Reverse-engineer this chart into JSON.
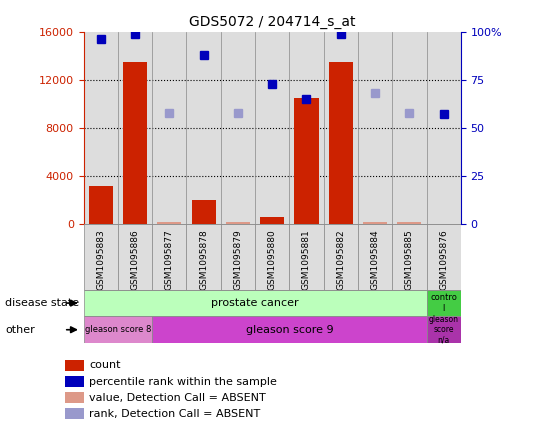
{
  "title": "GDS5072 / 204714_s_at",
  "samples": [
    "GSM1095883",
    "GSM1095886",
    "GSM1095877",
    "GSM1095878",
    "GSM1095879",
    "GSM1095880",
    "GSM1095881",
    "GSM1095882",
    "GSM1095884",
    "GSM1095885",
    "GSM1095876"
  ],
  "counts": [
    3200,
    13500,
    200,
    2000,
    200,
    600,
    10500,
    13500,
    200,
    200,
    50
  ],
  "percentile_ranks": [
    96,
    99,
    58,
    88,
    58,
    73,
    65,
    99,
    68,
    58,
    57
  ],
  "absent_mask": [
    false,
    false,
    true,
    false,
    true,
    false,
    false,
    false,
    true,
    true,
    false
  ],
  "bar_color_present": "#cc2200",
  "bar_color_absent": "#dd9988",
  "dot_color_present": "#0000bb",
  "dot_color_absent": "#9999cc",
  "disease_color_prostate": "#bbffbb",
  "disease_color_control": "#44cc44",
  "gleason_color_8": "#dd88cc",
  "gleason_color_9": "#cc44cc",
  "gleason_color_na": "#aa33aa",
  "ylim_left": [
    0,
    16000
  ],
  "ylim_right": [
    0,
    100
  ],
  "yticks_left": [
    0,
    4000,
    8000,
    12000,
    16000
  ],
  "yticks_right": [
    0,
    25,
    50,
    75,
    100
  ],
  "background_color": "#ffffff"
}
